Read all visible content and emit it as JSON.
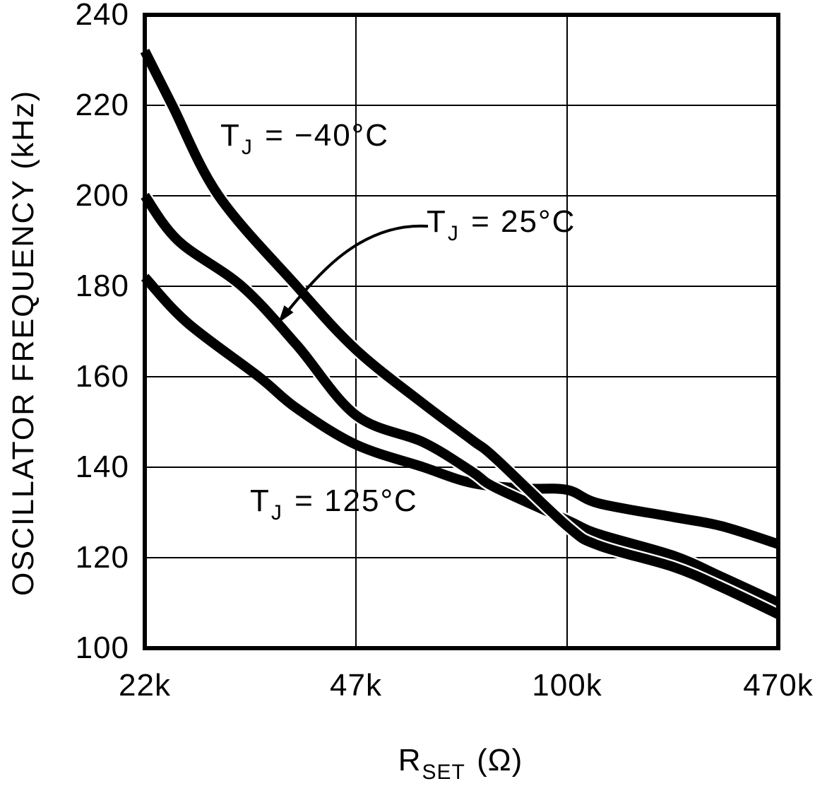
{
  "chart_data": {
    "type": "line",
    "title": "",
    "ylabel": "OSCILLATOR FREQUENCY (kHz)",
    "xlabel_base": "R",
    "xlabel_sub": "SET",
    "xlabel_unit": " (Ω)",
    "x_tick_labels": [
      "22k",
      "47k",
      "100k",
      "470k"
    ],
    "y_tick_labels": [
      "240",
      "220",
      "200",
      "180",
      "160",
      "140",
      "120",
      "100"
    ],
    "ylim": [
      100,
      240
    ],
    "y_gridline_step": 20,
    "grid": true,
    "x_scale_note": "four tick positions equally spaced (log-style resistor values)",
    "legend_position": "inline-labels-on-plot",
    "line_color": "#000000",
    "background_color": "#ffffff",
    "series": [
      {
        "name": "TJ = -40°C",
        "label_main": "T",
        "label_sub": "J",
        "label_rest": " = −40°C",
        "categories": [
          "22k",
          "47k",
          "100k",
          "470k"
        ],
        "values_at_ticks": [
          232,
          166,
          128,
          108
        ],
        "samples": [
          [
            0,
            232
          ],
          [
            0.13,
            220
          ],
          [
            0.35,
            200
          ],
          [
            0.72,
            180
          ],
          [
            1.0,
            166
          ],
          [
            1.32,
            154
          ],
          [
            1.55,
            146
          ],
          [
            1.66,
            142
          ],
          [
            2.0,
            127
          ],
          [
            2.15,
            122.7
          ],
          [
            2.5,
            118
          ],
          [
            2.73,
            113.5
          ],
          [
            3.0,
            107.5
          ]
        ]
      },
      {
        "name": "TJ = 25°C",
        "label_main": "T",
        "label_sub": "J",
        "label_rest": " = 25°C",
        "categories": [
          "22k",
          "47k",
          "100k",
          "470k"
        ],
        "values_at_ticks": [
          200,
          151,
          129,
          110
        ],
        "samples": [
          [
            0,
            200
          ],
          [
            0.16,
            190
          ],
          [
            0.46,
            180
          ],
          [
            0.72,
            167
          ],
          [
            1.0,
            151.5
          ],
          [
            1.32,
            145.5
          ],
          [
            1.55,
            139
          ],
          [
            1.66,
            135.5
          ],
          [
            2.0,
            128.3
          ],
          [
            2.15,
            125.2
          ],
          [
            2.5,
            120.5
          ],
          [
            2.73,
            115.8
          ],
          [
            3.0,
            110
          ]
        ]
      },
      {
        "name": "TJ = 125°C",
        "label_main": "T",
        "label_sub": "J",
        "label_rest": " = 125°C",
        "categories": [
          "22k",
          "47k",
          "100k",
          "470k"
        ],
        "values_at_ticks": [
          182,
          145,
          135,
          123
        ],
        "samples": [
          [
            0,
            182
          ],
          [
            0.2,
            172
          ],
          [
            0.54,
            160
          ],
          [
            0.72,
            153
          ],
          [
            1.0,
            145
          ],
          [
            1.32,
            140
          ],
          [
            1.55,
            136.5
          ],
          [
            1.8,
            135.3
          ],
          [
            2.0,
            135
          ],
          [
            2.15,
            132
          ],
          [
            2.5,
            129
          ],
          [
            2.73,
            127
          ],
          [
            3.0,
            123
          ]
        ]
      }
    ],
    "annotation_arrow": {
      "note": "curved leader from TJ=25C label to middle curve"
    }
  }
}
